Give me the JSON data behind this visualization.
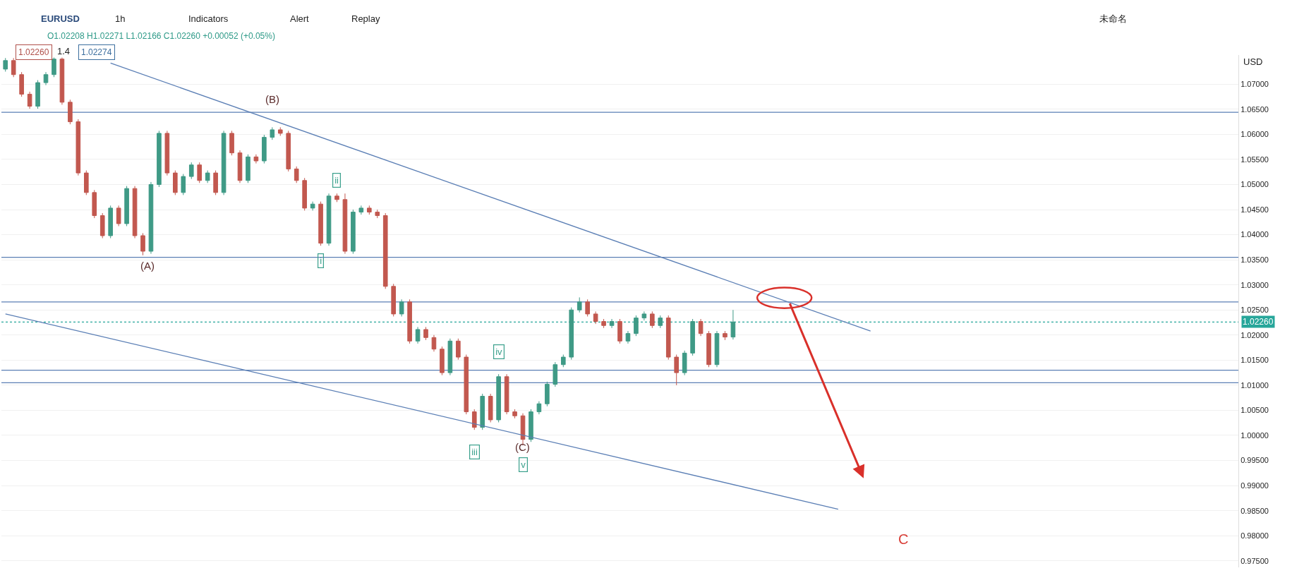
{
  "chart_data": {
    "type": "candlestick",
    "title": "EURUSD",
    "subtitle": "O1.02208 H1.02271 L1.02166 C1.02260 +0.00052 (+0.05%)",
    "categories": [
      null,
      null,
      null,
      null,
      null,
      null,
      null,
      null,
      null,
      null,
      null,
      null,
      null,
      null,
      null,
      null,
      null,
      null,
      null,
      null,
      null,
      null,
      null,
      null,
      null,
      null,
      null,
      null,
      null,
      null,
      null,
      null,
      null,
      null,
      null,
      null,
      null,
      null,
      null,
      null,
      null,
      null,
      null,
      null,
      null,
      null,
      null,
      null,
      null,
      null,
      null,
      null,
      null,
      null,
      null,
      null,
      null,
      null,
      null,
      null,
      null,
      null,
      null,
      null,
      null,
      null,
      null,
      null,
      null,
      null,
      null,
      null,
      null,
      null,
      null,
      null,
      null,
      null,
      null,
      null,
      null,
      null,
      null,
      null,
      null,
      null,
      null,
      null,
      null,
      null,
      null,
      null,
      null,
      null,
      null,
      null,
      null,
      null,
      null,
      null,
      null,
      null,
      null,
      null,
      null,
      null,
      null,
      null,
      null,
      null,
      null,
      null,
      null,
      null,
      null,
      null,
      null,
      null,
      null,
      null,
      null,
      null,
      null,
      null,
      null,
      null,
      null,
      null,
      null,
      null,
      null,
      null,
      null,
      null,
      null,
      null,
      null,
      null,
      null,
      null,
      null,
      null,
      null,
      null,
      null,
      null,
      null,
      null,
      null,
      null,
      null,
      null,
      null
    ],
    "ohlc": [
      [
        1.073,
        1.0752,
        1.0725,
        1.0747
      ],
      [
        1.0747,
        1.0752,
        1.0714,
        1.0719
      ],
      [
        1.0719,
        1.0724,
        1.0675,
        1.068
      ],
      [
        1.068,
        1.0685,
        1.0651,
        1.0656
      ],
      [
        1.0656,
        1.0708,
        1.0651,
        1.0703
      ],
      [
        1.0703,
        1.0724,
        1.0698,
        1.0719
      ],
      [
        1.0719,
        1.0753,
        1.0714,
        1.075
      ],
      [
        1.075,
        1.0753,
        1.0659,
        1.0664
      ],
      [
        1.0664,
        1.0669,
        1.062,
        1.0625
      ],
      [
        1.0625,
        1.063,
        1.0518,
        1.0523
      ],
      [
        1.0523,
        1.0528,
        1.0479,
        1.0484
      ],
      [
        1.0484,
        1.0489,
        1.0433,
        1.0438
      ],
      [
        1.0438,
        1.0443,
        1.0393,
        1.0398
      ],
      [
        1.0398,
        1.0458,
        1.0393,
        1.0453
      ],
      [
        1.0453,
        1.0458,
        1.0417,
        1.0422
      ],
      [
        1.0422,
        1.0497,
        1.0417,
        1.0492
      ],
      [
        1.0492,
        1.0497,
        1.0393,
        1.0398
      ],
      [
        1.0398,
        1.0403,
        1.0359,
        1.0367
      ],
      [
        1.0367,
        1.0505,
        1.0362,
        1.05
      ],
      [
        1.05,
        1.0607,
        1.0495,
        1.0602
      ],
      [
        1.0602,
        1.0607,
        1.0518,
        1.0523
      ],
      [
        1.0523,
        1.0528,
        1.0479,
        1.0484
      ],
      [
        1.0484,
        1.0521,
        1.0479,
        1.0516
      ],
      [
        1.0516,
        1.0544,
        1.0511,
        1.0539
      ],
      [
        1.0539,
        1.0544,
        1.0503,
        1.0508
      ],
      [
        1.0508,
        1.0528,
        1.0503,
        1.0523
      ],
      [
        1.0523,
        1.0528,
        1.0479,
        1.0484
      ],
      [
        1.0484,
        1.0607,
        1.0479,
        1.0602
      ],
      [
        1.0602,
        1.0607,
        1.0558,
        1.0563
      ],
      [
        1.0563,
        1.0568,
        1.0503,
        1.0508
      ],
      [
        1.0508,
        1.056,
        1.0503,
        1.0555
      ],
      [
        1.0555,
        1.056,
        1.0542,
        1.0547
      ],
      [
        1.0547,
        1.0599,
        1.0542,
        1.0594
      ],
      [
        1.0594,
        1.0614,
        1.0589,
        1.0609
      ],
      [
        1.0609,
        1.0614,
        1.0597,
        1.0602
      ],
      [
        1.0602,
        1.0607,
        1.0526,
        1.0531
      ],
      [
        1.0531,
        1.0536,
        1.0503,
        1.0508
      ],
      [
        1.0508,
        1.0513,
        1.0448,
        1.0453
      ],
      [
        1.0453,
        1.0466,
        1.0448,
        1.0461
      ],
      [
        1.0461,
        1.0466,
        1.0378,
        1.0383
      ],
      [
        1.0383,
        1.0482,
        1.0378,
        1.0477
      ],
      [
        1.0477,
        1.0482,
        1.0465,
        1.047
      ],
      [
        1.047,
        1.0482,
        1.0362,
        1.0367
      ],
      [
        1.0367,
        1.045,
        1.0362,
        1.0445
      ],
      [
        1.0445,
        1.0458,
        1.044,
        1.0453
      ],
      [
        1.0453,
        1.0458,
        1.044,
        1.0445
      ],
      [
        1.0445,
        1.045,
        1.0433,
        1.0438
      ],
      [
        1.0438,
        1.0443,
        1.0292,
        1.0297
      ],
      [
        1.0297,
        1.0302,
        1.0237,
        1.0242
      ],
      [
        1.0242,
        1.0271,
        1.0237,
        1.0266
      ],
      [
        1.0266,
        1.0271,
        1.0183,
        1.0188
      ],
      [
        1.0188,
        1.0216,
        1.0183,
        1.0211
      ],
      [
        1.0211,
        1.0216,
        1.019,
        1.0195
      ],
      [
        1.0195,
        1.02,
        1.0167,
        1.0172
      ],
      [
        1.0172,
        1.0177,
        1.012,
        1.0125
      ],
      [
        1.0125,
        1.0193,
        1.012,
        1.0188
      ],
      [
        1.0188,
        1.0193,
        1.0151,
        1.0156
      ],
      [
        1.0156,
        1.0161,
        1.0042,
        1.0047
      ],
      [
        1.0047,
        1.0052,
        1.0011,
        1.0016
      ],
      [
        1.0016,
        1.0083,
        1.0011,
        1.0078
      ],
      [
        1.0078,
        1.0083,
        1.0026,
        1.0031
      ],
      [
        1.0031,
        1.0122,
        1.0026,
        1.0117
      ],
      [
        1.0117,
        1.0122,
        1.0042,
        1.0047
      ],
      [
        1.0047,
        1.0052,
        1.0034,
        1.0039
      ],
      [
        1.0039,
        1.0044,
        0.998,
        0.9992
      ],
      [
        0.9992,
        1.0052,
        0.9987,
        1.0047
      ],
      [
        1.0047,
        1.0068,
        1.0042,
        1.0063
      ],
      [
        1.0063,
        1.0107,
        1.0058,
        1.0102
      ],
      [
        1.0102,
        1.0146,
        1.0097,
        1.0141
      ],
      [
        1.0141,
        1.0161,
        1.0136,
        1.0156
      ],
      [
        1.0156,
        1.0255,
        1.0151,
        1.025
      ],
      [
        1.025,
        1.0275,
        1.0245,
        1.0266
      ],
      [
        1.0266,
        1.0271,
        1.0237,
        1.0242
      ],
      [
        1.0242,
        1.0247,
        1.0222,
        1.0227
      ],
      [
        1.0227,
        1.0232,
        1.0214,
        1.0219
      ],
      [
        1.0219,
        1.0232,
        1.0214,
        1.0227
      ],
      [
        1.0227,
        1.0232,
        1.0183,
        1.0188
      ],
      [
        1.0188,
        1.0208,
        1.0183,
        1.0203
      ],
      [
        1.0203,
        1.0239,
        1.0198,
        1.0234
      ],
      [
        1.0234,
        1.0247,
        1.0229,
        1.0242
      ],
      [
        1.0242,
        1.0247,
        1.0214,
        1.0219
      ],
      [
        1.0219,
        1.0239,
        1.0214,
        1.0234
      ],
      [
        1.0234,
        1.0239,
        1.0151,
        1.0156
      ],
      [
        1.0156,
        1.0161,
        1.01,
        1.0125
      ],
      [
        1.0125,
        1.0169,
        1.012,
        1.0164
      ],
      [
        1.0164,
        1.0232,
        1.0159,
        1.0227
      ],
      [
        1.0227,
        1.0232,
        1.0198,
        1.0203
      ],
      [
        1.0203,
        1.0208,
        1.0136,
        1.0141
      ],
      [
        1.0141,
        1.0208,
        1.0136,
        1.0203
      ],
      [
        1.0203,
        1.0208,
        1.019,
        1.0196
      ],
      [
        1.0196,
        1.025,
        1.0191,
        1.0226
      ],
      null,
      null,
      null,
      null,
      null,
      null,
      null,
      null,
      null,
      null,
      null,
      null,
      null,
      null,
      null,
      null,
      null,
      null,
      null,
      null,
      null,
      null,
      null,
      null,
      null,
      null,
      null,
      null,
      null,
      null,
      null,
      null,
      null,
      null,
      null,
      null,
      null,
      null,
      null,
      null,
      null,
      null,
      null,
      null,
      null,
      null,
      null,
      null,
      null,
      null,
      null,
      null,
      null,
      null,
      null,
      null,
      null,
      null,
      null,
      null,
      null,
      null
    ],
    "series": [
      {
        "type": "line",
        "color": "#5b7fb5",
        "values": [
          null,
          null,
          null,
          null,
          null,
          null,
          null,
          null,
          null,
          null,
          null,
          null,
          null,
          1.0742,
          null,
          null,
          null,
          null,
          null,
          null,
          null,
          null,
          null,
          null,
          null,
          null,
          null,
          null,
          null,
          null,
          null,
          null,
          null,
          null,
          null,
          null,
          null,
          null,
          null,
          null,
          null,
          null,
          null,
          null,
          null,
          null,
          null,
          null,
          null,
          null,
          null,
          null,
          null,
          null,
          null,
          null,
          null,
          null,
          null,
          null,
          null,
          null,
          null,
          null,
          null,
          null,
          null,
          null,
          null,
          null,
          null,
          null,
          null,
          null,
          null,
          null,
          null,
          null,
          null,
          null,
          null,
          null,
          null,
          null,
          null,
          null,
          null,
          null,
          null,
          null,
          null,
          null,
          null,
          null,
          null,
          null,
          null,
          null,
          null,
          null,
          null,
          null,
          null,
          null,
          null,
          null,
          null,
          1.0208,
          null,
          null,
          null,
          null,
          null,
          null,
          null,
          null,
          null,
          null,
          null,
          null,
          null,
          null,
          null,
          null,
          null,
          null,
          null,
          null,
          null,
          null,
          null,
          null,
          null,
          null,
          null,
          null,
          null,
          null,
          null,
          null,
          null,
          null,
          null,
          null,
          null,
          null,
          null,
          null,
          null,
          null,
          null,
          null,
          null
        ]
      },
      {
        "type": "line",
        "color": "#5b7fb5",
        "values": [
          1.0242,
          null,
          null,
          null,
          null,
          null,
          null,
          null,
          null,
          null,
          null,
          null,
          null,
          null,
          null,
          null,
          null,
          null,
          null,
          null,
          null,
          null,
          null,
          null,
          null,
          null,
          null,
          null,
          null,
          null,
          null,
          null,
          null,
          null,
          null,
          null,
          null,
          null,
          null,
          null,
          null,
          null,
          null,
          null,
          null,
          null,
          null,
          null,
          null,
          null,
          null,
          null,
          null,
          null,
          null,
          null,
          null,
          null,
          null,
          null,
          null,
          null,
          null,
          null,
          null,
          null,
          null,
          null,
          null,
          null,
          null,
          null,
          null,
          null,
          null,
          null,
          null,
          null,
          null,
          null,
          null,
          null,
          null,
          null,
          null,
          null,
          null,
          null,
          null,
          null,
          null,
          null,
          null,
          null,
          null,
          null,
          null,
          null,
          null,
          null,
          null,
          null,
          null,
          0.9853,
          null,
          null,
          null,
          null,
          null,
          null,
          null,
          null,
          null,
          null,
          null,
          null,
          null,
          null,
          null,
          null,
          null,
          null,
          null,
          null,
          null,
          null,
          null,
          null,
          null,
          null,
          null,
          null,
          null,
          null,
          null,
          null,
          null,
          null,
          null,
          null,
          null,
          null,
          null,
          null,
          null,
          null,
          null,
          null,
          null,
          null,
          null,
          null,
          null
        ]
      }
    ],
    "ref_lines": [
      {
        "axis": "y",
        "value": 1.0644,
        "color": "#5b7fb5"
      },
      {
        "axis": "y",
        "value": 1.0355,
        "color": "#5b7fb5"
      },
      {
        "axis": "y",
        "value": 1.0266,
        "color": "#5b7fb5"
      },
      {
        "axis": "y",
        "value": 1.013,
        "color": "#5b7fb5"
      },
      {
        "axis": "y",
        "value": 1.0105,
        "color": "#5b7fb5"
      },
      {
        "axis": "y",
        "value": 1.0226,
        "label": "1.02260",
        "color": "#26a69a",
        "line_style": "dotted"
      }
    ],
    "annotations": [
      "(A)",
      "(B)",
      {
        "text": "i",
        "y": 1.0348
      },
      {
        "text": "ii",
        "y": 1.0509
      },
      {
        "text": "iii",
        "y": 0.9967
      },
      {
        "text": "iv",
        "y": 1.0166
      },
      "(C)",
      {
        "text": "v",
        "y": 0.9941
      },
      "C",
      "1h",
      "Indicators",
      "Alert",
      "Replay",
      "未命名",
      "USD",
      "1.02260",
      "1.4",
      "1.02274"
    ],
    "ylim": [
      0.9737,
      1.0758
    ],
    "yticks": [
      {
        "value": 0.975,
        "label": "0.97500"
      },
      {
        "value": 0.98,
        "label": "0.98000"
      },
      {
        "value": 0.985,
        "label": "0.98500"
      },
      {
        "value": 0.99,
        "label": "0.99000"
      },
      {
        "value": 0.995,
        "label": "0.99500"
      },
      {
        "value": 1.0,
        "label": "1.00000"
      },
      {
        "value": 1.005,
        "label": "1.00500"
      },
      {
        "value": 1.01,
        "label": "1.01000"
      },
      {
        "value": 1.015,
        "label": "1.01500"
      },
      {
        "value": 1.02,
        "label": "1.02000"
      },
      {
        "value": 1.025,
        "label": "1.02500"
      },
      {
        "value": 1.03,
        "label": "1.03000"
      },
      {
        "value": 1.035,
        "label": "1.03500"
      },
      {
        "value": 1.04,
        "label": "1.04000"
      },
      {
        "value": 1.045,
        "label": "1.04500"
      },
      {
        "value": 1.05,
        "label": "1.05000"
      },
      {
        "value": 1.055,
        "label": "1.05500"
      },
      {
        "value": 1.06,
        "label": "1.06000"
      },
      {
        "value": 1.065,
        "label": "1.06500"
      },
      {
        "value": 1.07,
        "label": "1.07000"
      }
    ],
    "grid": true
  }
}
